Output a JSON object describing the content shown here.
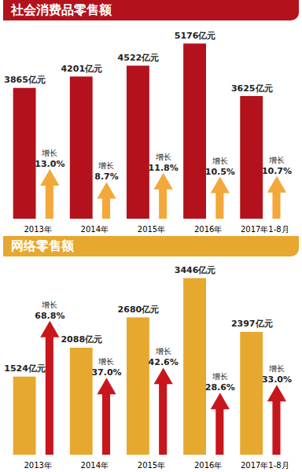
{
  "chart_data": [
    {
      "type": "bar",
      "title": "社会消费品零售额",
      "categories": [
        "2013年",
        "2014年",
        "2015年",
        "2016年",
        "2017年1-8月"
      ],
      "ylim": [
        0,
        5300
      ],
      "y2lim": [
        0,
        60
      ],
      "data_labels": true,
      "tick_labels": "x",
      "series": [
        {
          "type": "bar",
          "values": [
            3865,
            4201,
            4522,
            5176,
            3625
          ],
          "value_labels": [
            "3865亿元",
            "4201亿元",
            "4522亿元",
            "5176亿元",
            "3625亿元"
          ],
          "color": "#b3121c"
        },
        {
          "name": "增长",
          "type": "arrow",
          "axis": "y2",
          "values": [
            13.0,
            8.7,
            11.8,
            10.5,
            10.7
          ],
          "value_labels": [
            "13.0%",
            "8.7%",
            "11.8%",
            "10.5%",
            "10.7%"
          ],
          "color": "#f2a83a"
        }
      ]
    },
    {
      "type": "bar",
      "title": "网络零售额",
      "categories": [
        "2013年",
        "2014年",
        "2015年",
        "2016年",
        "2017年1-8月"
      ],
      "ylim": [
        0,
        3500
      ],
      "y2lim": [
        0,
        100
      ],
      "data_labels": true,
      "tick_labels": "x",
      "series": [
        {
          "type": "bar",
          "values": [
            1524,
            2088,
            2680,
            3446,
            2397
          ],
          "value_labels": [
            "1524亿元",
            "2088亿元",
            "2680亿元",
            "3446亿元",
            "2397亿元"
          ],
          "color": "#e6a82e"
        },
        {
          "name": "增长",
          "type": "arrow",
          "axis": "y2",
          "values": [
            68.8,
            37.0,
            42.6,
            28.6,
            33.0
          ],
          "value_labels": [
            "68.8%",
            "37.0%",
            "42.6%",
            "28.6%",
            "33.0%"
          ],
          "color": "#c8161d"
        }
      ]
    }
  ]
}
